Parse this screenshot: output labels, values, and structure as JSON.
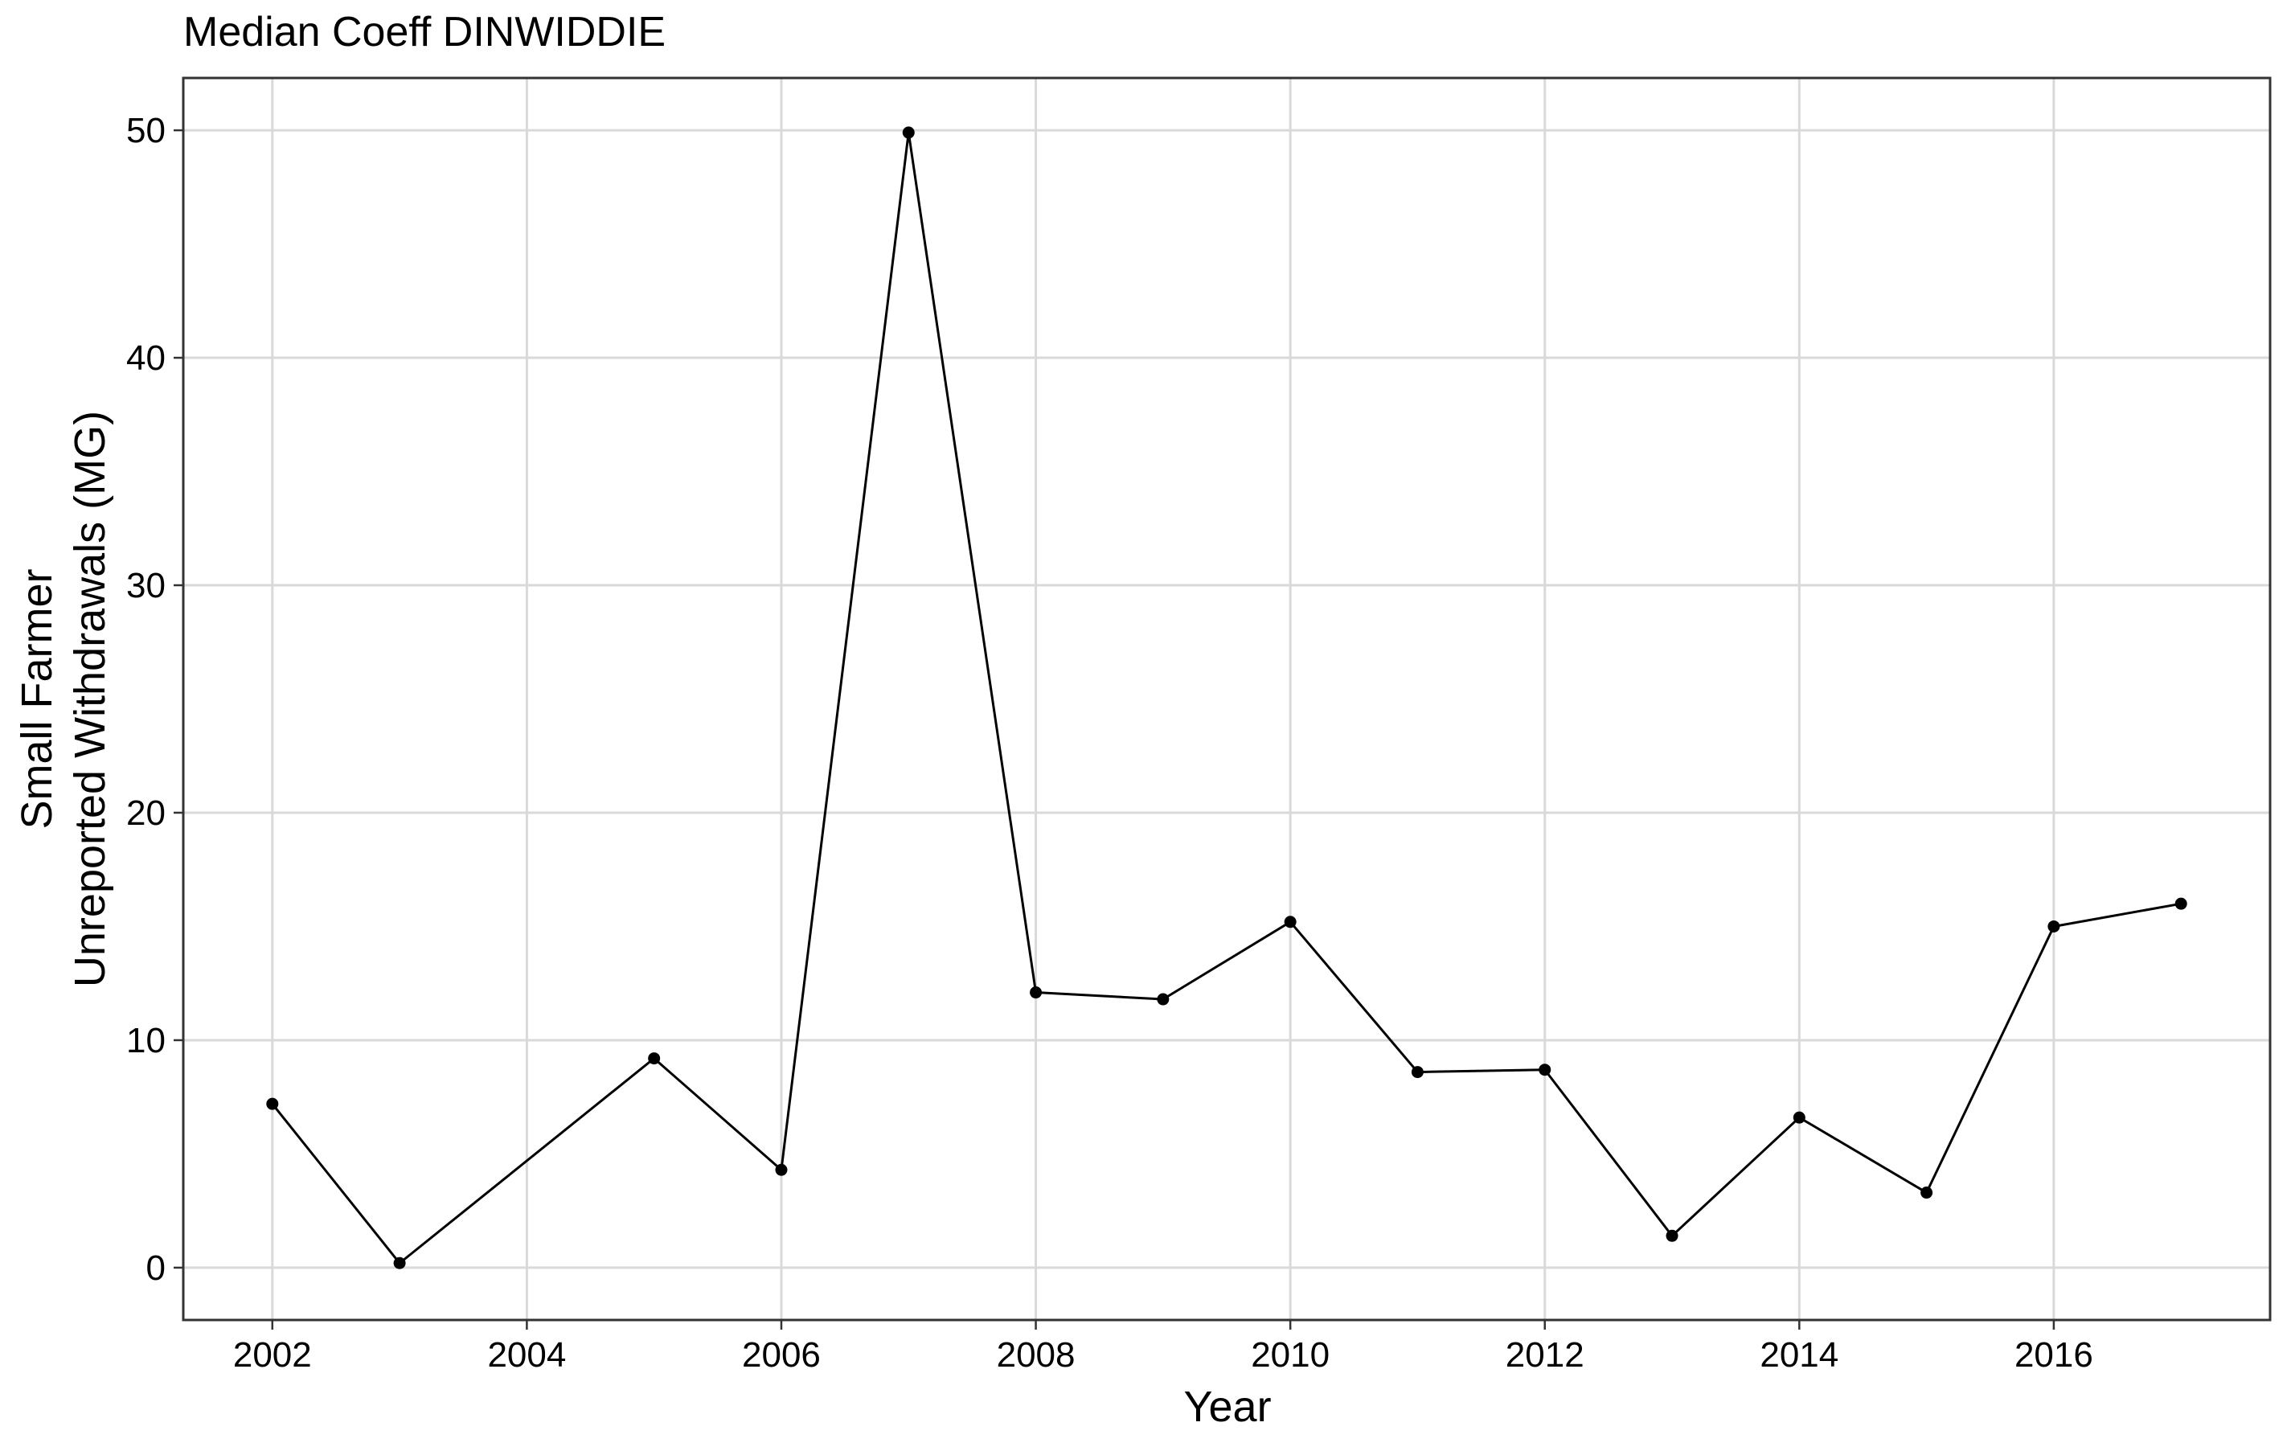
{
  "chart_data": {
    "type": "line",
    "title": "Median Coeff DINWIDDIE",
    "xlabel": "Year",
    "ylabel_lines": [
      "Small Farmer",
      "Unreported Withdrawals (MG)"
    ],
    "xlim": [
      2001.3,
      2017.7
    ],
    "ylim": [
      -2.3,
      52.3
    ],
    "xticks": [
      2002,
      2004,
      2006,
      2008,
      2010,
      2012,
      2014,
      2016
    ],
    "yticks": [
      0,
      10,
      20,
      30,
      40,
      50
    ],
    "grid": true,
    "series": [
      {
        "x": [
          2002,
          2003,
          2005,
          2006,
          2007,
          2008,
          2009,
          2010,
          2011,
          2012,
          2013,
          2014,
          2015,
          2016,
          2017
        ],
        "values": [
          7.2,
          0.2,
          9.2,
          4.3,
          49.9,
          12.1,
          11.8,
          15.2,
          8.6,
          8.7,
          1.4,
          6.6,
          3.3,
          15.0,
          16.0
        ]
      }
    ]
  }
}
